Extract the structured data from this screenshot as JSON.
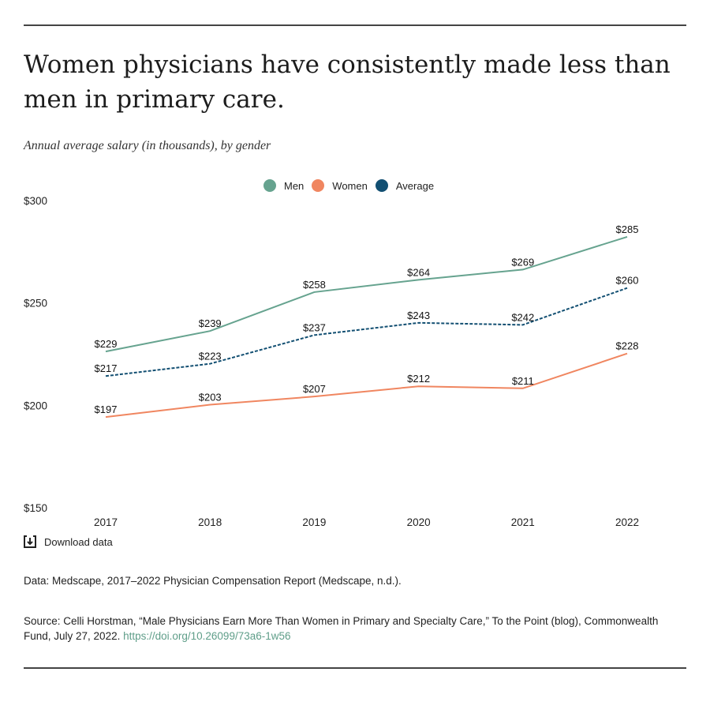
{
  "title": "Women physicians have consistently made less than men in primary care.",
  "subtitle": "Annual average salary (in thousands), by gender",
  "download_label": "Download data",
  "note": "Data: Medscape, 2017–2022 Physician Compensation Report (Medscape, n.d.).",
  "source": "Source: Celli Horstman, “Male Physicians Earn More Than Women in Primary and Specialty Care,” To the Point (blog), Commonwealth Fund, July 27, 2022. ",
  "source_link": "https://doi.org/10.26099/73a6-1w56",
  "chart_data": {
    "type": "line",
    "x": [
      "2017",
      "2018",
      "2019",
      "2020",
      "2021",
      "2022"
    ],
    "ylim": [
      150,
      300
    ],
    "yticks": [
      150,
      200,
      250,
      300
    ],
    "ytick_labels": [
      "$150",
      "$200",
      "$250",
      "$300"
    ],
    "grid": false,
    "legend": "top-center",
    "series": [
      {
        "name": "Men",
        "color": "#66a38f",
        "dash": false,
        "values": [
          229,
          239,
          258,
          264,
          269,
          285
        ],
        "labels": [
          "$229",
          "$239",
          "$258",
          "$264",
          "$269",
          "$285"
        ]
      },
      {
        "name": "Women",
        "color": "#f08660",
        "dash": false,
        "values": [
          197,
          203,
          207,
          212,
          211,
          228
        ],
        "labels": [
          "$197",
          "$203",
          "$207",
          "$212",
          "$211",
          "$228"
        ]
      },
      {
        "name": "Average",
        "color": "#124f72",
        "dash": true,
        "values": [
          217,
          223,
          237,
          243,
          242,
          260
        ],
        "labels": [
          "$217",
          "$223",
          "$237",
          "$243",
          "$242",
          "$260"
        ]
      }
    ]
  }
}
